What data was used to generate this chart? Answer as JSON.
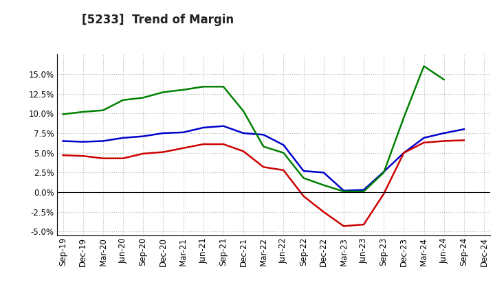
{
  "title": "[5233]  Trend of Margin",
  "x_labels": [
    "Sep-19",
    "Dec-19",
    "Mar-20",
    "Jun-20",
    "Sep-20",
    "Dec-20",
    "Mar-21",
    "Jun-21",
    "Sep-21",
    "Dec-21",
    "Mar-22",
    "Jun-22",
    "Sep-22",
    "Dec-22",
    "Mar-23",
    "Jun-23",
    "Sep-23",
    "Dec-23",
    "Mar-24",
    "Jun-24",
    "Sep-24",
    "Dec-24"
  ],
  "ordinary_income": [
    6.5,
    6.4,
    6.5,
    6.9,
    7.1,
    7.5,
    7.6,
    8.2,
    8.4,
    7.5,
    7.3,
    6.0,
    2.7,
    2.5,
    0.2,
    0.3,
    2.6,
    5.0,
    6.9,
    7.5,
    8.0,
    null
  ],
  "net_income": [
    4.7,
    4.6,
    4.3,
    4.3,
    4.9,
    5.1,
    5.6,
    6.1,
    6.1,
    5.2,
    3.2,
    2.8,
    -0.5,
    -2.5,
    -4.3,
    -4.1,
    -0.2,
    5.0,
    6.3,
    6.5,
    6.6,
    null
  ],
  "operating_cashflow": [
    9.9,
    10.2,
    10.4,
    11.7,
    12.0,
    12.7,
    13.0,
    13.4,
    13.4,
    10.3,
    5.8,
    5.0,
    1.8,
    0.9,
    0.1,
    0.1,
    2.5,
    9.5,
    16.0,
    14.3,
    null,
    null
  ],
  "ylim": [
    -5.5,
    17.5
  ],
  "yticks": [
    -5.0,
    -2.5,
    0.0,
    2.5,
    5.0,
    7.5,
    10.0,
    12.5,
    15.0
  ],
  "line_colors": {
    "ordinary_income": "#0000cc",
    "net_income": "#cc0000",
    "operating_cashflow": "#008000"
  },
  "background_color": "#ffffff",
  "grid_color": "#bbbbbb",
  "title_fontsize": 12,
  "tick_fontsize": 8.5,
  "legend_fontsize": 9
}
